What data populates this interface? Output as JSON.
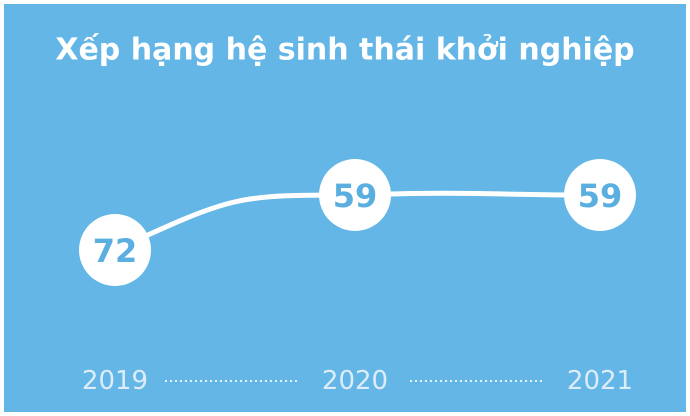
{
  "chart_data": {
    "type": "line",
    "title": "Xếp hạng hệ sinh thái khởi nghiệp",
    "categories": [
      "2019",
      "2020",
      "2021"
    ],
    "values": [
      72,
      59,
      59
    ],
    "color": "#ffffff"
  }
}
